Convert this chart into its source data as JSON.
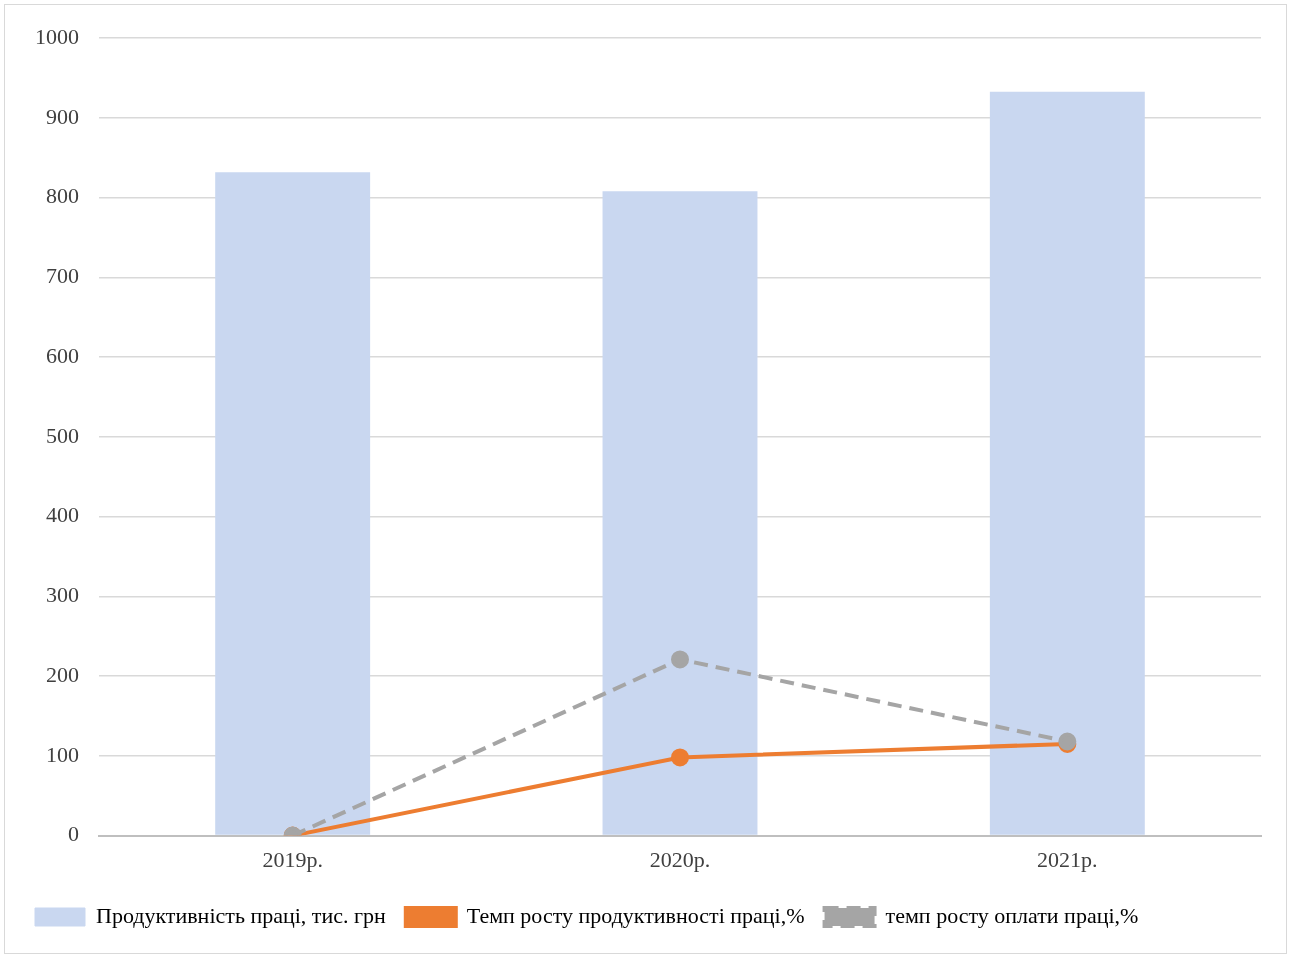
{
  "chart_data": {
    "type": "bar",
    "categories": [
      "2019р.",
      "2020р.",
      "2021р."
    ],
    "series": [
      {
        "name": "Продуктивність праці, тис. грн",
        "color": "#c9d7f0",
        "values": [
          832,
          808,
          933
        ]
      },
      {
        "type": "line",
        "name": "Темп росту продуктивності праці,%",
        "color": "#ed7d31",
        "values": [
          0,
          98,
          115
        ],
        "marker": "circle",
        "line_style": "solid"
      },
      {
        "type": "line",
        "name": "темп росту оплати праці,%",
        "color": "#a5a5a5",
        "values": [
          0,
          221,
          118
        ],
        "marker": "circle",
        "line_style": "dashed"
      }
    ],
    "ylim": [
      0,
      1000
    ],
    "yticks": [
      0,
      100,
      200,
      300,
      400,
      500,
      600,
      700,
      800,
      900,
      1000
    ],
    "grid": "y",
    "legend": "bottom"
  }
}
